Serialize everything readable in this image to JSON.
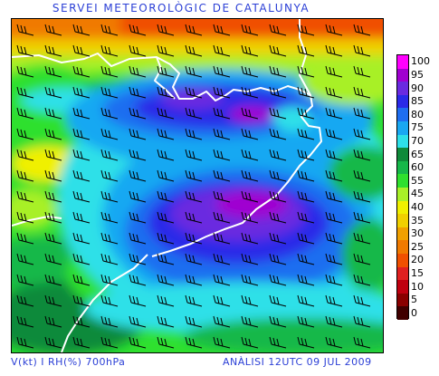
{
  "header": {
    "title": "SERVEI METEOROLÒGIC DE CATALUNYA"
  },
  "footer": {
    "variables": "V(kt) I RH(%) 700hPa",
    "analysis": "ANÀLISI 12UTC 09 JUL 2009"
  },
  "legend": {
    "entries": [
      {
        "label": "100",
        "color": "#ff00ff"
      },
      {
        "label": "95",
        "color": "#a000d0"
      },
      {
        "label": "90",
        "color": "#6a2ae0"
      },
      {
        "label": "85",
        "color": "#2a2ae8"
      },
      {
        "label": "80",
        "color": "#1e6ef0"
      },
      {
        "label": "75",
        "color": "#19a8f2"
      },
      {
        "label": "70",
        "color": "#2de0e8"
      },
      {
        "label": "65",
        "color": "#0f8a3a"
      },
      {
        "label": "60",
        "color": "#16b84a"
      },
      {
        "label": "55",
        "color": "#2fe02f"
      },
      {
        "label": "45",
        "color": "#a8f028"
      },
      {
        "label": "40",
        "color": "#f0f000"
      },
      {
        "label": "35",
        "color": "#f0d000"
      },
      {
        "label": "30",
        "color": "#f0a000"
      },
      {
        "label": "25",
        "color": "#f07a00"
      },
      {
        "label": "20",
        "color": "#f05000"
      },
      {
        "label": "15",
        "color": "#e02020"
      },
      {
        "label": "10",
        "color": "#c00010"
      },
      {
        "label": "5",
        "color": "#8a0000"
      },
      {
        "label": "0",
        "color": "#400000"
      }
    ]
  },
  "colors": {
    "title_text": "#2b3fd6",
    "coastline": "#ffffff",
    "wind_barbs": "#000000"
  }
}
